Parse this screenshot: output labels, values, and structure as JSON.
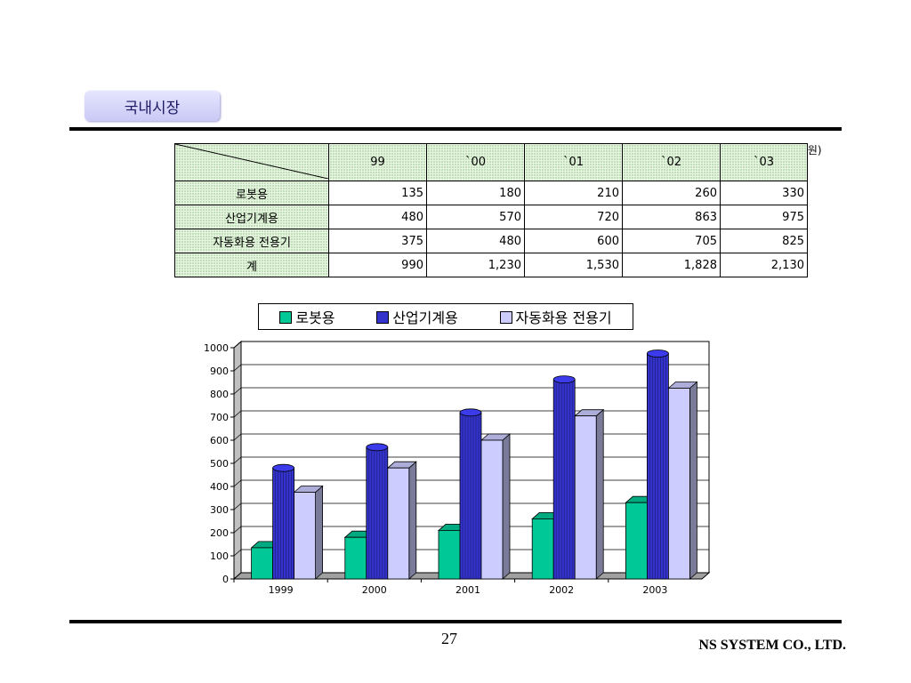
{
  "section_title": "국내시장",
  "unit_note": "(단위:억원)",
  "table": {
    "years": [
      "99",
      "`00",
      "`01",
      "`02",
      "`03"
    ],
    "rows": [
      {
        "label": "로봇용",
        "values": [
          "135",
          "180",
          "210",
          "260",
          "330"
        ]
      },
      {
        "label": "산업기계용",
        "values": [
          "480",
          "570",
          "720",
          "863",
          "975"
        ]
      },
      {
        "label": "자동화용 전용기",
        "values": [
          "375",
          "480",
          "600",
          "705",
          "825"
        ]
      },
      {
        "label": "계",
        "values": [
          "990",
          "1,230",
          "1,530",
          "1,828",
          "2,130"
        ]
      }
    ]
  },
  "chart_data": {
    "type": "bar",
    "categories": [
      "1999",
      "2000",
      "2001",
      "2002",
      "2003"
    ],
    "series": [
      {
        "name": "로봇용",
        "values": [
          135,
          180,
          210,
          260,
          330
        ],
        "color": "#00c896"
      },
      {
        "name": "산업기계용",
        "values": [
          480,
          570,
          720,
          863,
          975
        ],
        "color": "#3333cc"
      },
      {
        "name": "자동화용 전용기",
        "values": [
          375,
          480,
          600,
          705,
          825
        ],
        "color": "#ccccff"
      }
    ],
    "ylim": [
      0,
      1000
    ],
    "yticks": [
      0,
      100,
      200,
      300,
      400,
      500,
      600,
      700,
      800,
      900,
      1000
    ],
    "grid": true,
    "legend_position": "top"
  },
  "footer": {
    "page_number": "27",
    "company": "NS SYSTEM CO., LTD."
  }
}
